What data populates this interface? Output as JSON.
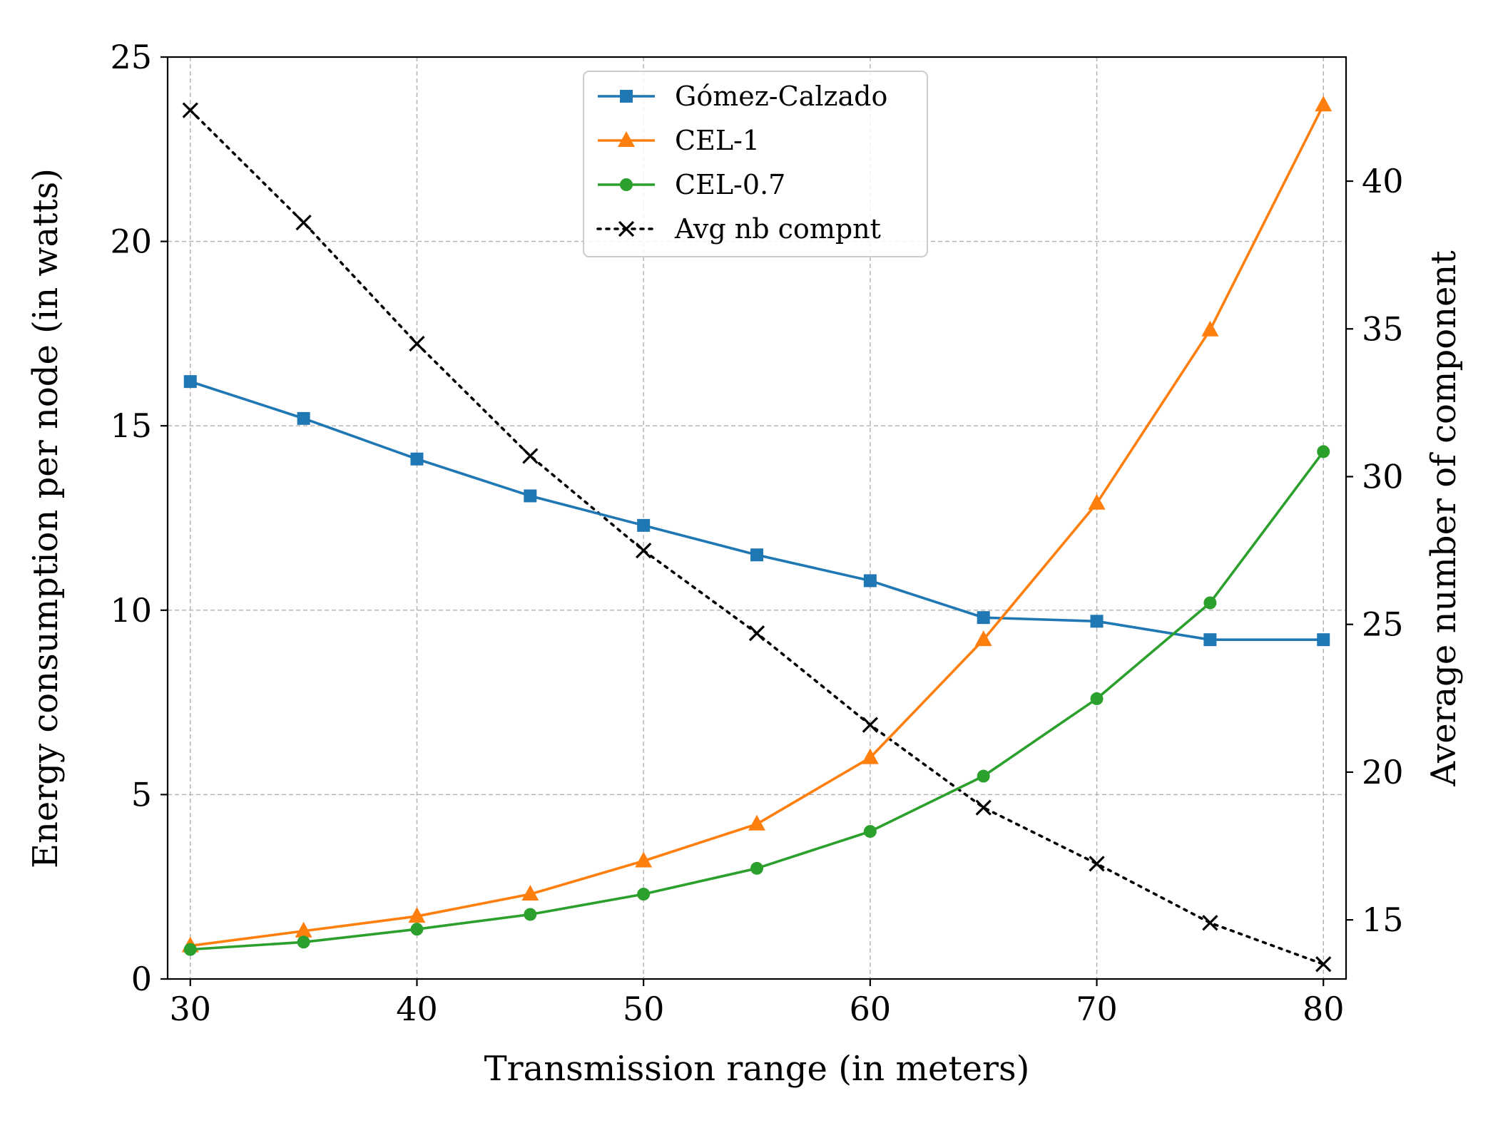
{
  "chart_data": {
    "type": "line",
    "title": "",
    "xlabel": "Transmission range (in meters)",
    "ylabel": "Energy consumption per node (in watts)",
    "y2label": "Average number of component",
    "x": [
      30,
      35,
      40,
      45,
      50,
      55,
      60,
      65,
      70,
      75,
      80
    ],
    "xlim": [
      29,
      81
    ],
    "ylim": [
      0,
      25
    ],
    "y2lim": [
      13.0,
      44.2
    ],
    "xticks": [
      30,
      40,
      50,
      60,
      70,
      80
    ],
    "yticks": [
      0,
      5,
      10,
      15,
      20,
      25
    ],
    "y2ticks": [
      15,
      20,
      25,
      30,
      35,
      40
    ],
    "grid": true,
    "legend_position": "top-center",
    "series": [
      {
        "name": "Gómez-Calzado",
        "axis": "left",
        "color": "#1f77b4",
        "marker": "square",
        "linestyle": "solid",
        "values": [
          16.2,
          15.2,
          14.1,
          13.1,
          12.3,
          11.5,
          10.8,
          9.8,
          9.7,
          9.2,
          9.2
        ]
      },
      {
        "name": "CEL-1",
        "axis": "left",
        "color": "#ff7f0e",
        "marker": "triangle",
        "linestyle": "solid",
        "values": [
          0.9,
          1.3,
          1.7,
          2.3,
          3.2,
          4.2,
          6.0,
          9.2,
          12.9,
          17.6,
          23.7
        ]
      },
      {
        "name": "CEL-0.7",
        "axis": "left",
        "color": "#2ca02c",
        "marker": "circle",
        "linestyle": "solid",
        "values": [
          0.8,
          1.0,
          1.35,
          1.75,
          2.3,
          3.0,
          4.0,
          5.5,
          7.6,
          10.2,
          14.3
        ]
      },
      {
        "name": "Avg nb compnt",
        "axis": "right",
        "color": "#000000",
        "marker": "x",
        "linestyle": "dotted",
        "values": [
          42.4,
          38.6,
          34.5,
          30.7,
          27.5,
          24.7,
          21.6,
          18.8,
          16.9,
          14.9,
          13.5
        ]
      }
    ]
  }
}
